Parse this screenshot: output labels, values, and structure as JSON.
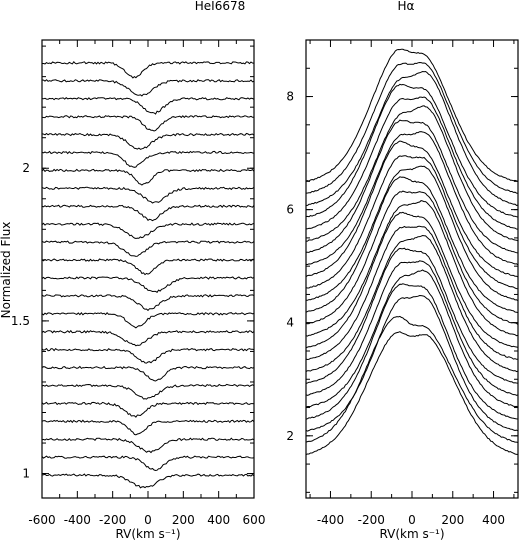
{
  "chart_data": [
    {
      "type": "line",
      "title": "HeI6678",
      "xlabel": "RV(km s⁻¹)",
      "ylabel": "Normalized Flux",
      "xlim": [
        -600,
        600
      ],
      "ylim": [
        0.92,
        2.42
      ],
      "x_ticks": [
        -600,
        -400,
        -200,
        0,
        200,
        400,
        600
      ],
      "y_ticks": [
        1,
        1.5,
        2
      ],
      "n_spectra": 24,
      "offset_step": 0.0587,
      "base_level": 0.995,
      "absorption_center_range": [
        -80,
        40
      ],
      "absorption_depth": 0.045,
      "description": "Stacked HeI 6678 line profiles offset vertically"
    },
    {
      "type": "line",
      "title": "Hα",
      "xlabel": "RV(km s⁻¹)",
      "ylabel": "",
      "xlim": [
        -520,
        520
      ],
      "ylim": [
        0.9,
        9.0
      ],
      "x_ticks": [
        -400,
        -200,
        0,
        200,
        400
      ],
      "y_ticks": [
        2,
        4,
        6,
        8
      ],
      "n_spectra": 24,
      "offset_step": 0.21,
      "base_level": 1.55,
      "peak_height": 1.35,
      "peak_separation_kms": 180,
      "description": "Stacked H-alpha double-peaked emission profiles offset vertically"
    }
  ]
}
